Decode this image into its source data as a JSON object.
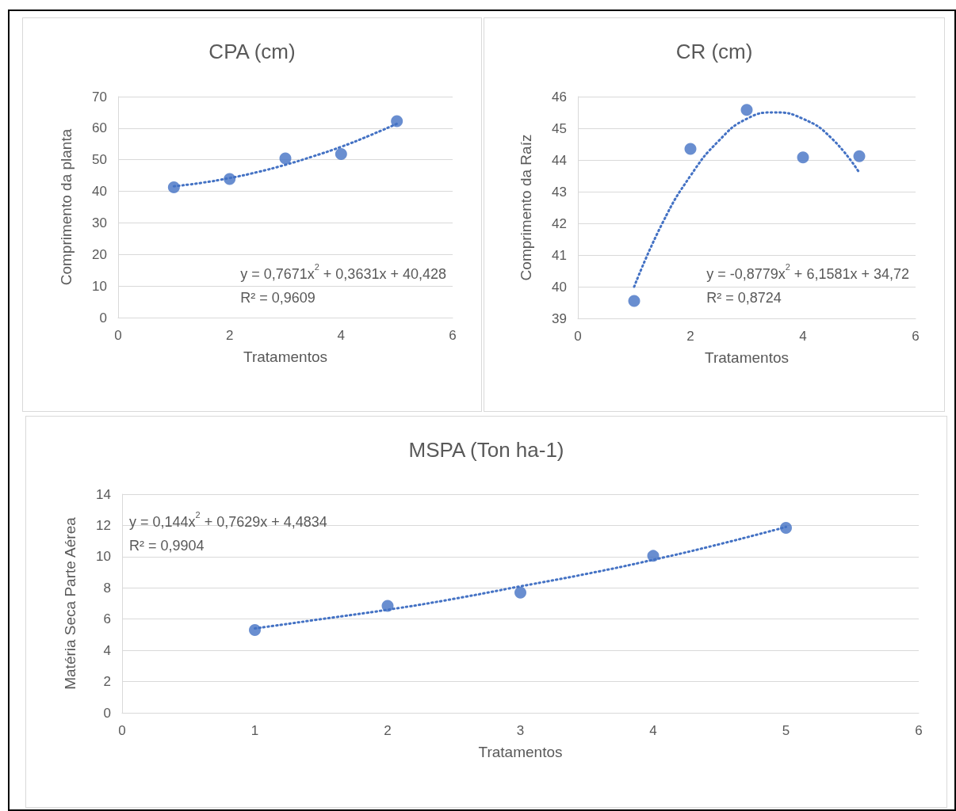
{
  "chart_data": [
    {
      "type": "scatter",
      "title": "CPA (cm)",
      "xlabel": "Tratamentos",
      "ylabel": "Comprimento da planta",
      "xlim": [
        0,
        6
      ],
      "xticks": [
        0,
        2,
        4,
        6
      ],
      "ylim": [
        0,
        70
      ],
      "yticks": [
        0,
        10,
        20,
        30,
        40,
        50,
        60,
        70
      ],
      "grid": "y",
      "annotations": [
        "y = 0,7671x$^{2}$ + 0,3631x + 40,428",
        "R² = 0,9609"
      ],
      "series": [
        {
          "type": "scatter",
          "color": "#4472c4",
          "marker": "circle",
          "x": [
            1,
            2,
            3,
            4,
            5
          ],
          "values": [
            41.3,
            43.9,
            50.4,
            51.8,
            62.2
          ]
        },
        {
          "type": "line",
          "color": "#4472c4",
          "marker": "none",
          "line_style": "dotted",
          "x": [
            1,
            1.5,
            2,
            2.5,
            3,
            3.5,
            4,
            4.5,
            5
          ],
          "values": [
            41.6,
            42.7,
            44.2,
            46.1,
            48.4,
            51.1,
            54.1,
            57.6,
            61.4
          ]
        }
      ]
    },
    {
      "type": "scatter",
      "title": "CR (cm)",
      "xlabel": "Tratamentos",
      "ylabel": "Comprimento da Raíz",
      "xlim": [
        0,
        6
      ],
      "xticks": [
        0,
        2,
        4,
        6
      ],
      "ylim": [
        39,
        46
      ],
      "yticks": [
        39,
        40,
        41,
        42,
        43,
        44,
        45,
        46
      ],
      "grid": "y",
      "annotations": [
        "y = -0,8779x$^{2}$ + 6,1581x + 34,72",
        "R² = 0,8724"
      ],
      "series": [
        {
          "type": "scatter",
          "color": "#4472c4",
          "marker": "circle",
          "x": [
            1,
            2,
            3,
            4,
            5
          ],
          "values": [
            39.55,
            44.35,
            45.58,
            44.08,
            44.12
          ]
        },
        {
          "type": "line",
          "color": "#4472c4",
          "marker": "none",
          "line_style": "dotted",
          "x": [
            1,
            1.5,
            2,
            2.5,
            3,
            3.5,
            4,
            4.5,
            5
          ],
          "values": [
            40.0,
            42.0,
            43.5,
            44.6,
            45.3,
            45.5,
            45.3,
            44.7,
            43.6
          ]
        }
      ]
    },
    {
      "type": "scatter",
      "title": "MSPA (Ton ha-1)",
      "xlabel": "Tratamentos",
      "ylabel": "Matéria Seca Parte Aérea",
      "xlim": [
        0,
        6
      ],
      "xticks": [
        0,
        1,
        2,
        3,
        4,
        5,
        6
      ],
      "ylim": [
        0,
        14
      ],
      "yticks": [
        0,
        2,
        4,
        6,
        8,
        10,
        12,
        14
      ],
      "grid": "y",
      "annotations": [
        "y = 0,144x$^{2}$ + 0,7629x + 4,4834",
        "R² = 0,9904"
      ],
      "series": [
        {
          "type": "scatter",
          "color": "#4472c4",
          "marker": "circle",
          "x": [
            1,
            2,
            3,
            4,
            5
          ],
          "values": [
            5.3,
            6.85,
            7.7,
            10.05,
            11.85
          ]
        },
        {
          "type": "line",
          "color": "#4472c4",
          "marker": "none",
          "line_style": "dotted",
          "x": [
            1,
            1.5,
            2,
            2.5,
            3,
            3.5,
            4,
            4.5,
            5
          ],
          "values": [
            5.4,
            6.0,
            6.6,
            7.3,
            8.1,
            8.9,
            9.8,
            10.8,
            11.9
          ]
        }
      ]
    }
  ]
}
